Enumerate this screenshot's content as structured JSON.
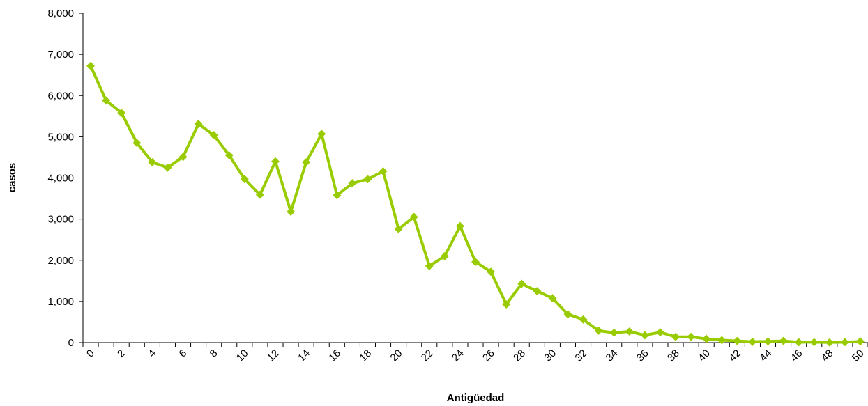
{
  "chart_data": {
    "type": "line",
    "title": "",
    "xlabel": "Antigüedad",
    "ylabel": "casos",
    "x": [
      0,
      1,
      2,
      3,
      4,
      5,
      6,
      7,
      8,
      9,
      10,
      11,
      12,
      13,
      14,
      15,
      16,
      17,
      18,
      19,
      20,
      21,
      22,
      23,
      24,
      25,
      26,
      27,
      28,
      29,
      30,
      31,
      32,
      33,
      34,
      35,
      36,
      37,
      38,
      39,
      40,
      41,
      42,
      43,
      44,
      45,
      46,
      47,
      48,
      49,
      50
    ],
    "x_tick_labels": [
      "0",
      "2",
      "4",
      "6",
      "8",
      "10",
      "12",
      "14",
      "16",
      "18",
      "20",
      "22",
      "24",
      "26",
      "28",
      "30",
      "32",
      "34",
      "36",
      "38",
      "40",
      "42",
      "44",
      "46",
      "48",
      "50"
    ],
    "y_tick_labels": [
      "0",
      "1,000",
      "2,000",
      "3,000",
      "4,000",
      "5,000",
      "6,000",
      "7,000",
      "8,000"
    ],
    "xlim": [
      0,
      50
    ],
    "ylim": [
      0,
      8000
    ],
    "grid": false,
    "legend": false,
    "series": [
      {
        "values": [
          6720,
          5880,
          5580,
          4850,
          4380,
          4250,
          4510,
          5310,
          5040,
          4550,
          3970,
          3590,
          4400,
          3180,
          4380,
          5070,
          3580,
          3870,
          3970,
          4160,
          2760,
          3050,
          1860,
          2100,
          2830,
          1960,
          1720,
          930,
          1430,
          1250,
          1080,
          690,
          560,
          290,
          240,
          270,
          180,
          250,
          140,
          140,
          90,
          60,
          40,
          20,
          30,
          40,
          10,
          10,
          5,
          10,
          30
        ],
        "color": "#99cc00"
      }
    ]
  }
}
